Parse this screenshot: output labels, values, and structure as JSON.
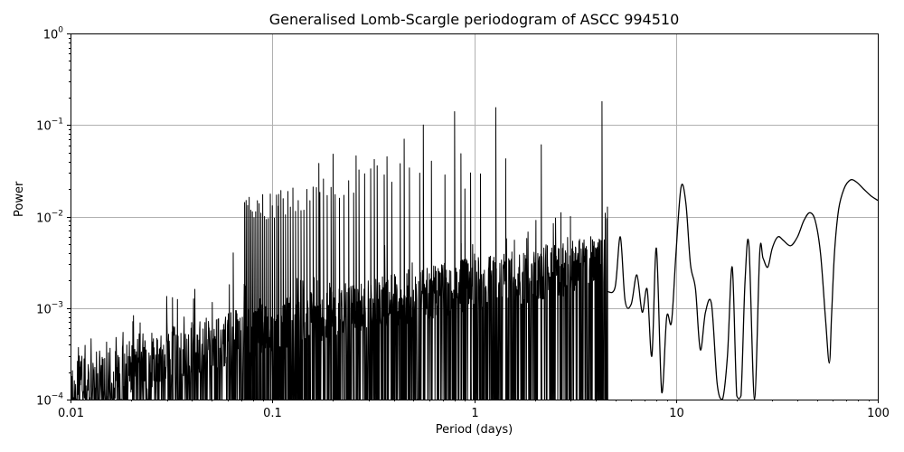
{
  "chart_data": {
    "type": "line",
    "title": "Generalised Lomb-Scargle periodogram of ASCC 994510",
    "xlabel": "Period (days)",
    "ylabel": "Power",
    "xscale": "log",
    "yscale": "log",
    "xlim": [
      0.01,
      100
    ],
    "ylim": [
      0.0001,
      1
    ],
    "grid": true,
    "legend": null,
    "x_ticks": [
      "0.01",
      "0.1",
      "1",
      "10",
      "100"
    ],
    "y_ticks": [
      "10^-4",
      "10^-3",
      "10^-2",
      "10^-1",
      "10^0"
    ],
    "line_color": "#000000",
    "grid_color": "#b0b0b0",
    "peak": {
      "period": 4.3,
      "power": 0.18
    },
    "notable_peaks": [
      {
        "period": 1.28,
        "power": 0.155
      },
      {
        "period": 0.8,
        "power": 0.14
      },
      {
        "period": 0.56,
        "power": 0.1
      },
      {
        "period": 0.45,
        "power": 0.07
      },
      {
        "period": 0.37,
        "power": 0.045
      },
      {
        "period": 0.32,
        "power": 0.042
      },
      {
        "period": 0.26,
        "power": 0.046
      },
      {
        "period": 0.2,
        "power": 0.048
      },
      {
        "period": 0.17,
        "power": 0.038
      },
      {
        "period": 0.107,
        "power": 0.013
      },
      {
        "period": 0.96,
        "power": 0.03
      },
      {
        "period": 0.9,
        "power": 0.02
      },
      {
        "period": 3.0,
        "power": 0.01
      },
      {
        "period": 0.064,
        "power": 0.004
      },
      {
        "period": 0.032,
        "power": 0.0013
      }
    ],
    "smooth_series": {
      "period": [
        4.6,
        5.0,
        5.3,
        5.6,
        6.0,
        6.4,
        6.8,
        7.2,
        7.6,
        8.0,
        8.5,
        9.0,
        9.5,
        10.0,
        10.6,
        11.2,
        11.8,
        12.5,
        13.2,
        14.0,
        15.0,
        16.0,
        17.0,
        18.0,
        19.0,
        20.0,
        21.0,
        22.0,
        23.0,
        24.5,
        26.0,
        27.0,
        28.5,
        30.0,
        32.0,
        34.0,
        37.0,
        40.0,
        43.0,
        46.0,
        49.0,
        52.0,
        55.0,
        57.5,
        59.0,
        61.0,
        64.0,
        68.0,
        73.0,
        78.0,
        85.0,
        92.0,
        100.0
      ],
      "power": [
        0.0015,
        0.0017,
        0.006,
        0.0012,
        0.0011,
        0.0023,
        0.0009,
        0.0016,
        0.0003,
        0.0045,
        0.00012,
        0.0008,
        0.0007,
        0.004,
        0.021,
        0.014,
        0.003,
        0.0016,
        0.00035,
        0.0009,
        0.0011,
        0.00015,
        0.0001,
        0.0003,
        0.0028,
        0.00011,
        0.00011,
        0.002,
        0.0048,
        0.0001,
        0.004,
        0.0035,
        0.0028,
        0.0045,
        0.006,
        0.0055,
        0.0048,
        0.006,
        0.009,
        0.011,
        0.009,
        0.004,
        0.0008,
        0.00025,
        0.0008,
        0.004,
        0.012,
        0.02,
        0.025,
        0.024,
        0.02,
        0.017,
        0.015
      ]
    }
  },
  "figure": {
    "title": "Generalised Lomb-Scargle periodogram of ASCC 994510",
    "xlabel": "Period (days)",
    "ylabel": "Power"
  }
}
